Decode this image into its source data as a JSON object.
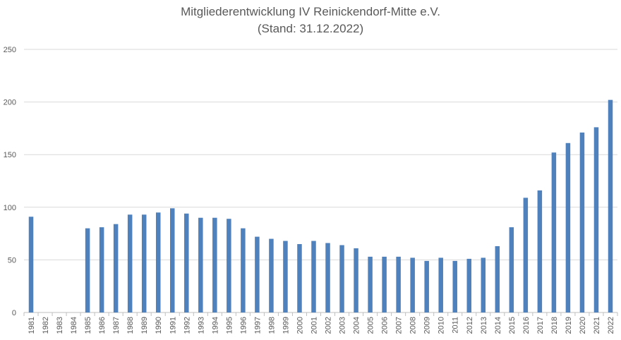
{
  "chart_data": {
    "type": "bar",
    "title": "Mitgliederentwicklung IV Reinickendorf-Mitte e.V.",
    "subtitle": "(Stand: 31.12.2022)",
    "xlabel": "",
    "ylabel": "",
    "ylim": [
      0,
      250
    ],
    "yticks": [
      "0",
      "50",
      "100",
      "150",
      "200",
      "250"
    ],
    "grid": true,
    "legend": "none",
    "bar_color": "#4f81bd",
    "categories": [
      "1981",
      "1982",
      "1983",
      "1984",
      "1985",
      "1986",
      "1987",
      "1988",
      "1989",
      "1990",
      "1991",
      "1992",
      "1993",
      "1994",
      "1995",
      "1996",
      "1997",
      "1998",
      "1999",
      "2000",
      "2001",
      "2002",
      "2003",
      "2004",
      "2005",
      "2006",
      "2007",
      "2008",
      "2009",
      "2010",
      "2011",
      "2012",
      "2013",
      "2014",
      "2015",
      "2016",
      "2017",
      "2018",
      "2019",
      "2020",
      "2021",
      "2022"
    ],
    "values": [
      91,
      0,
      0,
      0,
      80,
      81,
      84,
      93,
      93,
      95,
      99,
      94,
      90,
      90,
      89,
      80,
      72,
      70,
      68,
      65,
      68,
      66,
      64,
      61,
      53,
      53,
      53,
      52,
      49,
      52,
      49,
      51,
      52,
      63,
      81,
      109,
      116,
      152,
      161,
      171,
      176,
      202
    ]
  }
}
